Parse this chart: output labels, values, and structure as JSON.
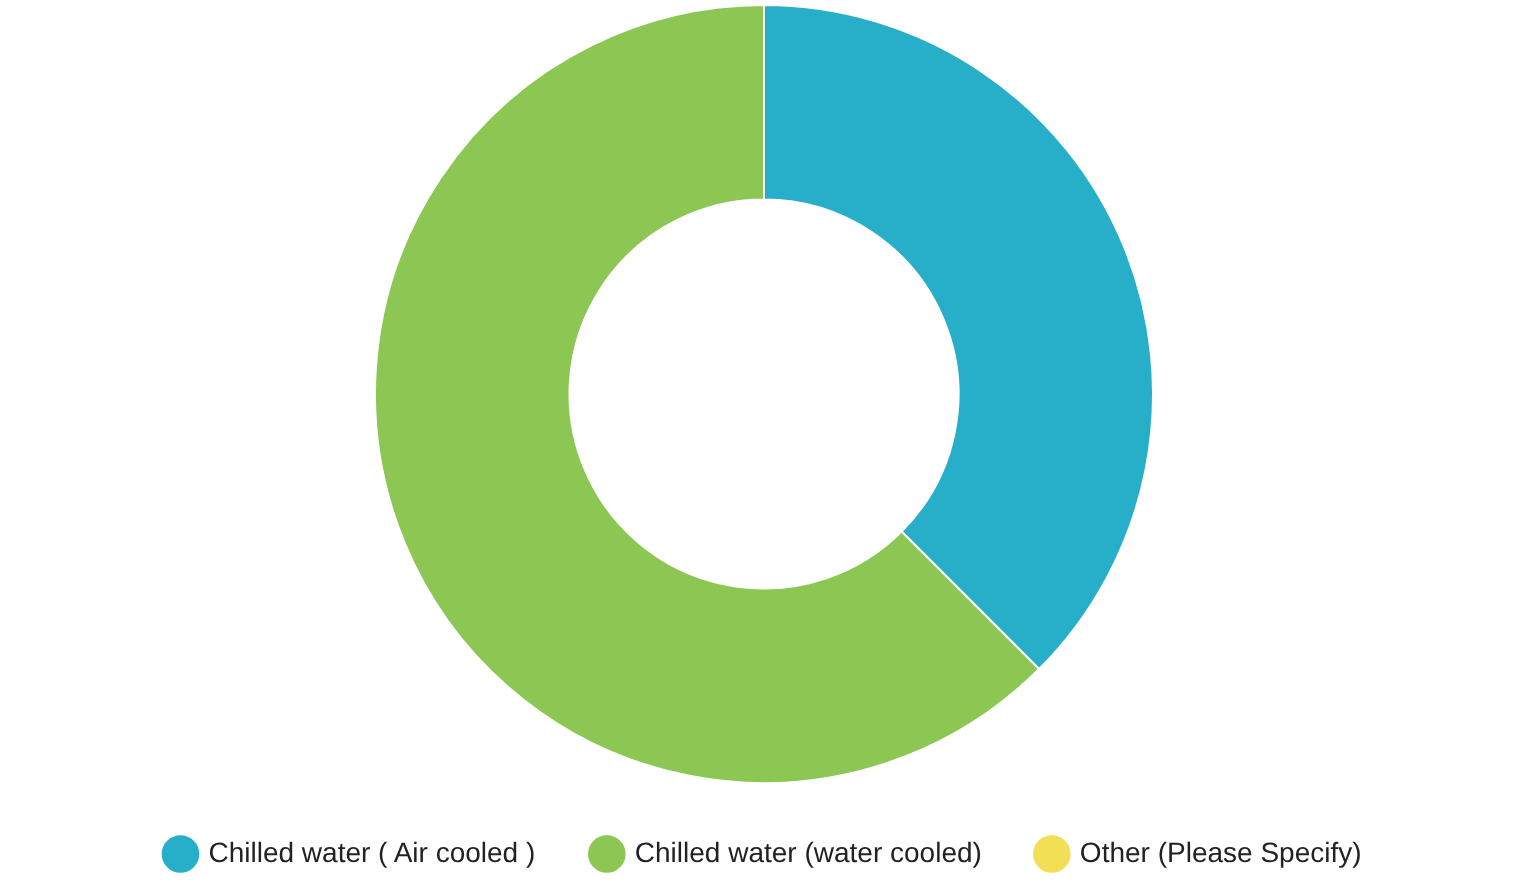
{
  "chart_data": {
    "type": "donut",
    "categories": [
      "Chilled water ( Air cooled )",
      "Chilled water (water cooled)",
      "Other (Please Specify)"
    ],
    "values": [
      37.5,
      62.5,
      0
    ],
    "colors": [
      "#27afc9",
      "#8cc653",
      "#f2df55"
    ],
    "legend": "bottom"
  }
}
